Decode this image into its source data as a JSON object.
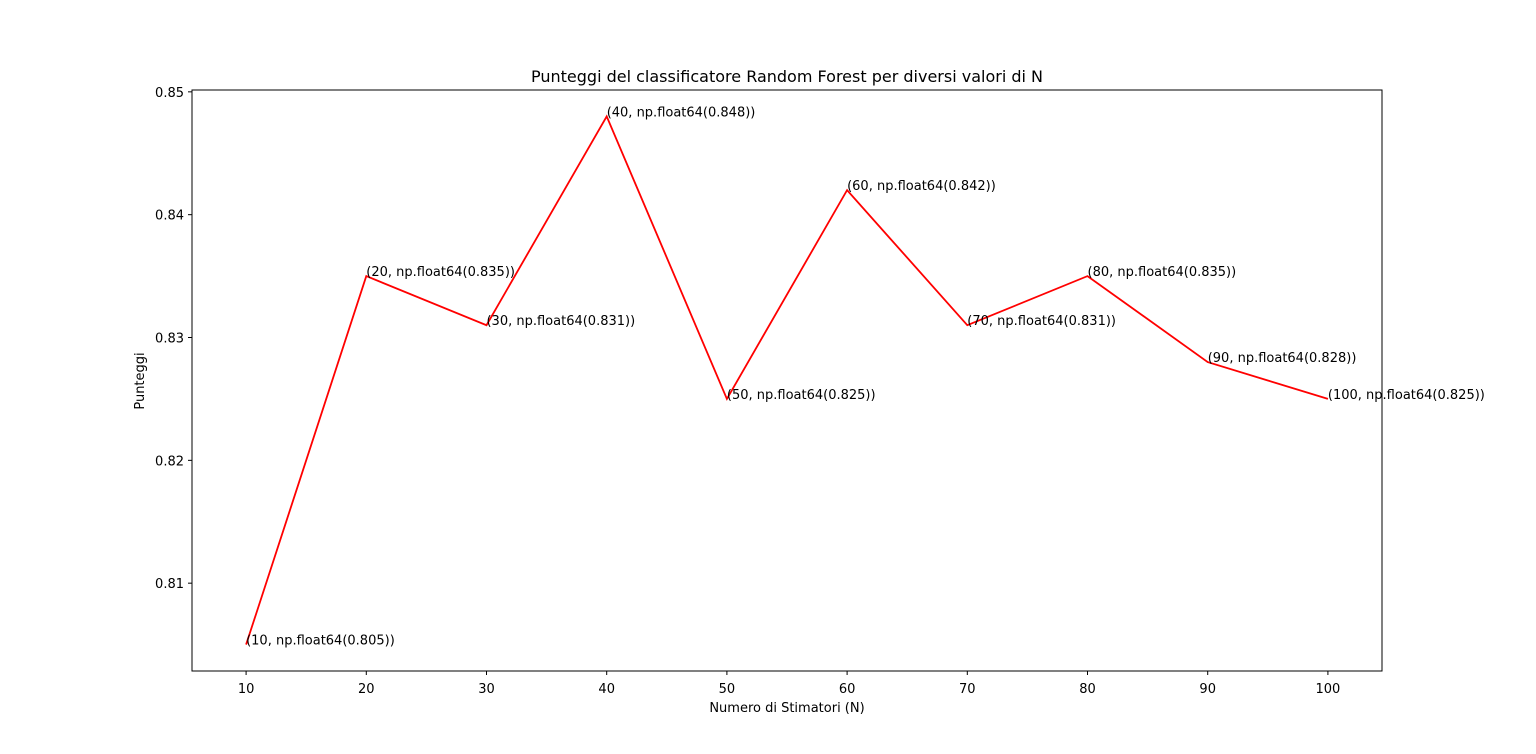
{
  "chart_data": {
    "type": "line",
    "title": "Punteggi del classificatore Random Forest per diversi valori di N",
    "xlabel": "Numero di Stimatori (N)",
    "ylabel": "Punteggi",
    "x": [
      10,
      20,
      30,
      40,
      50,
      60,
      70,
      80,
      90,
      100
    ],
    "series": [
      {
        "values": [
          0.805,
          0.835,
          0.831,
          0.848,
          0.825,
          0.842,
          0.831,
          0.835,
          0.828,
          0.825
        ],
        "color": "#ff0000"
      }
    ],
    "annotations": [
      "(10, np.float64(0.805))",
      "(20, np.float64(0.835))",
      "(30, np.float64(0.831))",
      "(40, np.float64(0.848))",
      "(50, np.float64(0.825))",
      "(60, np.float64(0.842))",
      "(70, np.float64(0.831))",
      "(80, np.float64(0.835))",
      "(90, np.float64(0.828))",
      "(100, np.float64(0.825))"
    ],
    "x_ticks": [
      "10",
      "20",
      "30",
      "40",
      "50",
      "60",
      "70",
      "80",
      "90",
      "100"
    ],
    "x_tick_values": [
      10,
      20,
      30,
      40,
      50,
      60,
      70,
      80,
      90,
      100
    ],
    "y_ticks": [
      "0.81",
      "0.82",
      "0.83",
      "0.84",
      "0.85"
    ],
    "y_tick_values": [
      0.81,
      0.82,
      0.83,
      0.84,
      0.85
    ],
    "xlim": [
      5.5,
      104.5
    ],
    "ylim": [
      0.80285,
      0.85015
    ],
    "grid": false,
    "legend": false
  }
}
